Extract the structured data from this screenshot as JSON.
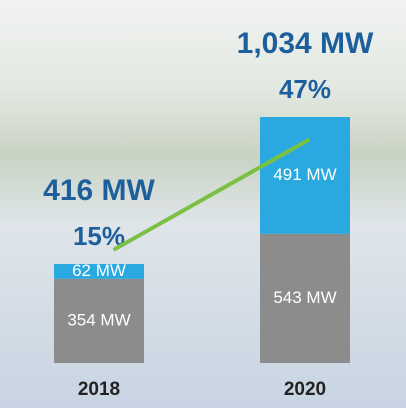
{
  "chart_data": {
    "type": "bar",
    "stacked": true,
    "categories": [
      "2018",
      "2020"
    ],
    "series": [
      {
        "color": "#8c8c8c",
        "values": [
          354,
          543
        ],
        "value_labels": [
          "354 MW",
          "543 MW"
        ]
      },
      {
        "color": "#2aa9e0",
        "values": [
          62,
          491
        ],
        "value_labels": [
          "62 MW",
          "491 MW"
        ]
      }
    ],
    "totals": {
      "values": [
        416,
        1034
      ],
      "value_labels": [
        "416 MW",
        "1,034 MW"
      ]
    },
    "share": {
      "type": "line",
      "color": "#7ac143",
      "values": [
        15,
        47
      ],
      "value_labels": [
        "15%",
        "47%"
      ]
    }
  }
}
